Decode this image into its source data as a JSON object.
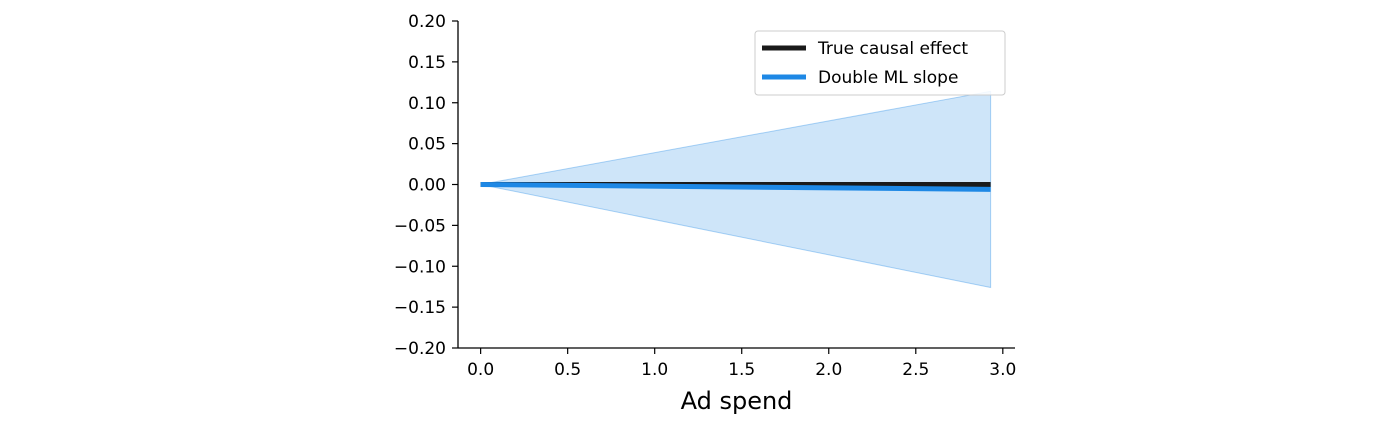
{
  "chart_data": {
    "type": "line",
    "title": "",
    "xlabel": "Ad spend",
    "ylabel": "",
    "xlim": [
      -0.13,
      3.07
    ],
    "ylim": [
      -0.2,
      0.2
    ],
    "x_ticks": [
      0.0,
      0.5,
      1.0,
      1.5,
      2.0,
      2.5,
      3.0
    ],
    "x_tick_labels": [
      "0.0",
      "0.5",
      "1.0",
      "1.5",
      "2.0",
      "2.5",
      "3.0"
    ],
    "y_ticks": [
      0.2,
      0.15,
      0.1,
      0.05,
      0.0,
      -0.05,
      -0.1,
      -0.15,
      -0.2
    ],
    "y_tick_labels": [
      "0.20",
      "0.15",
      "0.10",
      "0.05",
      "0.00",
      "−0.05",
      "−0.10",
      "−0.15",
      "−0.20"
    ],
    "grid": false,
    "legend_position": "top-right",
    "series": [
      {
        "name": "True causal effect",
        "color": "#1a1a1a",
        "x": [
          0.0,
          2.93
        ],
        "y": [
          0.0,
          0.0
        ]
      },
      {
        "name": "Double ML slope",
        "color": "#1e88e5",
        "x": [
          0.0,
          2.93
        ],
        "y": [
          0.0,
          -0.006
        ]
      }
    ],
    "band": {
      "color": "#1e88e5",
      "opacity": 0.22,
      "x": [
        0.0,
        2.93
      ],
      "lower": [
        0.0,
        -0.126
      ],
      "upper": [
        0.0,
        0.114
      ]
    }
  }
}
